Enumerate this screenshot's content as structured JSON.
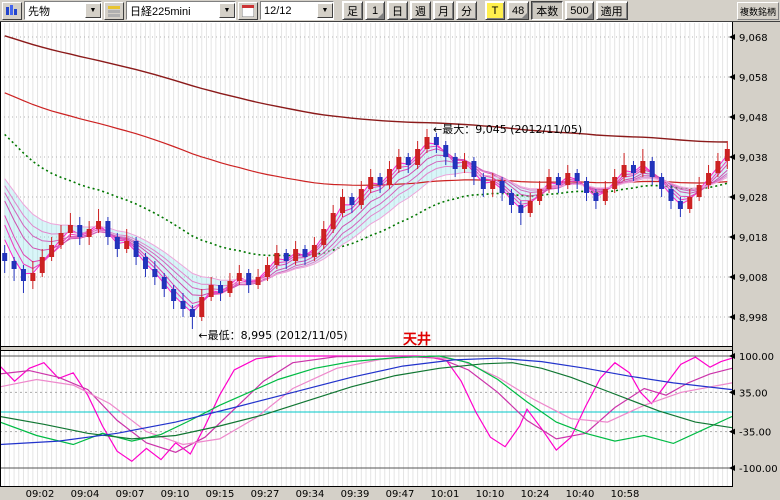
{
  "window": {
    "multi_symbol": "複数銘柄"
  },
  "toolbar": {
    "category_value": "先物",
    "symbol_value": "日経225mini",
    "contract_value": "12/12",
    "btn_bar_type": "足",
    "btn_interval_1": "1",
    "btn_day": "日",
    "btn_week": "週",
    "btn_month": "月",
    "btn_minute": "分",
    "btn_t": "T",
    "btn_bars_48": "48",
    "btn_honsu": "本数",
    "btn_bars_500": "500",
    "btn_apply": "適用"
  },
  "chart_data": {
    "type": "candlestick",
    "title": "日経225mini 12/12",
    "colors": {
      "up": "#cc2222",
      "down": "#2233bb",
      "grid": "#e4e4e4",
      "band": "rgba(130,225,235,0.30)",
      "signal": "#e00000"
    },
    "price_axis": {
      "labels": [
        "9,068",
        "9,058",
        "9,048",
        "9,038",
        "9,028",
        "9,018",
        "9,008",
        "8,998"
      ],
      "values": [
        9068,
        9058,
        9048,
        9038,
        9028,
        9018,
        9008,
        8998
      ]
    },
    "osc_axis": {
      "labels": [
        "100.00",
        "35.00",
        "-35.00",
        "-100.00"
      ],
      "values": [
        100,
        35,
        -35,
        -100
      ]
    },
    "x_ticks": [
      "09:02",
      "09:04",
      "09:07",
      "09:10",
      "09:15",
      "09:27",
      "09:34",
      "09:39",
      "09:47",
      "10:01",
      "10:10",
      "10:24",
      "10:40",
      "10:58"
    ],
    "annotations": {
      "max": "←最大：9,045 (2012/11/05)",
      "min": "←最低：8,995 (2012/11/05)",
      "signal": "天井",
      "signal_xfrac": 0.57
    },
    "candles": [
      [
        9014,
        9016,
        9009,
        9012
      ],
      [
        9012,
        9013,
        9007,
        9010
      ],
      [
        9010,
        9011,
        9004,
        9007
      ],
      [
        9007,
        9012,
        9005,
        9009
      ],
      [
        9009,
        9015,
        9008,
        9013
      ],
      [
        9013,
        9018,
        9012,
        9016
      ],
      [
        9016,
        9021,
        9015,
        9019
      ],
      [
        9019,
        9024,
        9018,
        9021
      ],
      [
        9021,
        9023,
        9016,
        9018
      ],
      [
        9018,
        9022,
        9016,
        9020
      ],
      [
        9020,
        9025,
        9019,
        9022
      ],
      [
        9022,
        9023,
        9016,
        9018
      ],
      [
        9018,
        9019,
        9013,
        9015
      ],
      [
        9015,
        9020,
        9014,
        9017
      ],
      [
        9017,
        9018,
        9011,
        9013
      ],
      [
        9013,
        9014,
        9008,
        9010
      ],
      [
        9010,
        9012,
        9006,
        9008
      ],
      [
        9008,
        9009,
        9003,
        9005
      ],
      [
        9005,
        9006,
        9000,
        9002
      ],
      [
        9002,
        9004,
        8998,
        9000
      ],
      [
        9000,
        9001,
        8995,
        8998
      ],
      [
        8998,
        9005,
        8997,
        9003
      ],
      [
        9003,
        9008,
        9002,
        9006
      ],
      [
        9006,
        9007,
        9002,
        9004
      ],
      [
        9004,
        9009,
        9003,
        9007
      ],
      [
        9007,
        9011,
        9006,
        9009
      ],
      [
        9009,
        9010,
        9004,
        9006
      ],
      [
        9006,
        9010,
        9005,
        9008
      ],
      [
        9008,
        9013,
        9007,
        9011
      ],
      [
        9011,
        9016,
        9010,
        9014
      ],
      [
        9014,
        9015,
        9010,
        9012
      ],
      [
        9012,
        9017,
        9011,
        9015
      ],
      [
        9015,
        9016,
        9011,
        9013
      ],
      [
        9013,
        9018,
        9012,
        9016
      ],
      [
        9016,
        9022,
        9015,
        9020
      ],
      [
        9020,
        9026,
        9019,
        9024
      ],
      [
        9024,
        9030,
        9023,
        9028
      ],
      [
        9028,
        9029,
        9024,
        9026
      ],
      [
        9026,
        9032,
        9025,
        9030
      ],
      [
        9030,
        9035,
        9029,
        9033
      ],
      [
        9033,
        9034,
        9029,
        9031
      ],
      [
        9031,
        9037,
        9030,
        9035
      ],
      [
        9035,
        9040,
        9034,
        9038
      ],
      [
        9038,
        9039,
        9034,
        9036
      ],
      [
        9036,
        9042,
        9035,
        9040
      ],
      [
        9040,
        9045,
        9039,
        9043
      ],
      [
        9043,
        9044,
        9039,
        9041
      ],
      [
        9041,
        9042,
        9036,
        9038
      ],
      [
        9038,
        9039,
        9033,
        9035
      ],
      [
        9035,
        9039,
        9034,
        9037
      ],
      [
        9037,
        9038,
        9031,
        9033
      ],
      [
        9033,
        9034,
        9028,
        9030
      ],
      [
        9030,
        9034,
        9028,
        9032
      ],
      [
        9032,
        9033,
        9027,
        9029
      ],
      [
        9029,
        9030,
        9024,
        9026
      ],
      [
        9026,
        9027,
        9021,
        9024
      ],
      [
        9024,
        9029,
        9023,
        9027
      ],
      [
        9027,
        9032,
        9026,
        9030
      ],
      [
        9030,
        9035,
        9029,
        9033
      ],
      [
        9033,
        9034,
        9029,
        9031
      ],
      [
        9031,
        9036,
        9030,
        9034
      ],
      [
        9034,
        9035,
        9030,
        9032
      ],
      [
        9032,
        9033,
        9027,
        9029
      ],
      [
        9029,
        9030,
        9025,
        9027
      ],
      [
        9027,
        9032,
        9026,
        9030
      ],
      [
        9030,
        9035,
        9029,
        9033
      ],
      [
        9033,
        9039,
        9032,
        9036
      ],
      [
        9036,
        9037,
        9032,
        9034
      ],
      [
        9034,
        9040,
        9033,
        9037
      ],
      [
        9037,
        9038,
        9031,
        9033
      ],
      [
        9033,
        9034,
        9028,
        9030
      ],
      [
        9030,
        9031,
        9025,
        9027
      ],
      [
        9027,
        9028,
        9023,
        9025
      ],
      [
        9025,
        9030,
        9024,
        9028
      ],
      [
        9028,
        9033,
        9027,
        9031
      ],
      [
        9031,
        9036,
        9030,
        9034
      ],
      [
        9034,
        9039,
        9033,
        9037
      ],
      [
        9037,
        9042,
        9035,
        9040
      ]
    ],
    "overlays": {
      "ribbon": {
        "periods": [
          2,
          3,
          4,
          6,
          8,
          10,
          13
        ],
        "seeds": [
          9028,
          9030,
          9031,
          9033,
          9034,
          9035,
          9036
        ],
        "colors": [
          "#ff22cc",
          "#f03cc0",
          "#e046b4",
          "#d050b0",
          "#d464bc",
          "#e284cc",
          "#eea4da"
        ]
      },
      "green": {
        "period": 28,
        "seed": 9046,
        "color": "#007700",
        "width": 1.6,
        "dash": "2,3"
      },
      "red_mid": {
        "period": 90,
        "seed": 9055,
        "color": "#cc2222",
        "width": 1.2
      },
      "red_long": {
        "period": 160,
        "seed": 9069,
        "color": "#8b1a1a",
        "width": 1.4
      }
    },
    "oscillator": {
      "series": [
        {
          "name": "rci-short",
          "color": "#ff00cc",
          "points": [
            [
              0,
              82
            ],
            [
              0.02,
              55
            ],
            [
              0.04,
              78
            ],
            [
              0.06,
              88
            ],
            [
              0.08,
              60
            ],
            [
              0.1,
              70
            ],
            [
              0.12,
              30
            ],
            [
              0.14,
              -25
            ],
            [
              0.16,
              -70
            ],
            [
              0.18,
              -88
            ],
            [
              0.2,
              -65
            ],
            [
              0.22,
              -85
            ],
            [
              0.24,
              -55
            ],
            [
              0.26,
              -75
            ],
            [
              0.28,
              -25
            ],
            [
              0.3,
              30
            ],
            [
              0.32,
              75
            ],
            [
              0.35,
              95
            ],
            [
              0.38,
              100
            ],
            [
              0.45,
              100
            ],
            [
              0.52,
              100
            ],
            [
              0.58,
              100
            ],
            [
              0.61,
              92
            ],
            [
              0.63,
              55
            ],
            [
              0.65,
              0
            ],
            [
              0.67,
              -45
            ],
            [
              0.69,
              -62
            ],
            [
              0.71,
              -25
            ],
            [
              0.72,
              5
            ],
            [
              0.74,
              -30
            ],
            [
              0.76,
              -68
            ],
            [
              0.78,
              -45
            ],
            [
              0.8,
              10
            ],
            [
              0.82,
              60
            ],
            [
              0.84,
              88
            ],
            [
              0.86,
              70
            ],
            [
              0.875,
              35
            ],
            [
              0.89,
              15
            ],
            [
              0.91,
              50
            ],
            [
              0.93,
              85
            ],
            [
              0.95,
              98
            ],
            [
              0.97,
              80
            ],
            [
              0.985,
              90
            ],
            [
              1,
              96
            ]
          ]
        },
        {
          "name": "rci-mid",
          "color": "#cc33aa",
          "points": [
            [
              0,
              68
            ],
            [
              0.04,
              74
            ],
            [
              0.08,
              62
            ],
            [
              0.12,
              40
            ],
            [
              0.16,
              -15
            ],
            [
              0.2,
              -55
            ],
            [
              0.24,
              -72
            ],
            [
              0.28,
              -45
            ],
            [
              0.32,
              5
            ],
            [
              0.36,
              55
            ],
            [
              0.4,
              88
            ],
            [
              0.46,
              99
            ],
            [
              0.54,
              100
            ],
            [
              0.6,
              96
            ],
            [
              0.64,
              75
            ],
            [
              0.68,
              35
            ],
            [
              0.72,
              -15
            ],
            [
              0.76,
              -48
            ],
            [
              0.8,
              -38
            ],
            [
              0.84,
              8
            ],
            [
              0.88,
              42
            ],
            [
              0.91,
              30
            ],
            [
              0.94,
              52
            ],
            [
              0.97,
              68
            ],
            [
              1,
              78
            ]
          ]
        },
        {
          "name": "rci-mid2",
          "color": "#ee88cc",
          "points": [
            [
              0,
              45
            ],
            [
              0.05,
              58
            ],
            [
              0.1,
              48
            ],
            [
              0.15,
              15
            ],
            [
              0.2,
              -35
            ],
            [
              0.25,
              -58
            ],
            [
              0.3,
              -48
            ],
            [
              0.35,
              -10
            ],
            [
              0.4,
              42
            ],
            [
              0.46,
              78
            ],
            [
              0.52,
              94
            ],
            [
              0.58,
              100
            ],
            [
              0.63,
              92
            ],
            [
              0.68,
              62
            ],
            [
              0.73,
              22
            ],
            [
              0.78,
              -12
            ],
            [
              0.83,
              -18
            ],
            [
              0.88,
              12
            ],
            [
              0.93,
              35
            ],
            [
              1,
              52
            ]
          ]
        },
        {
          "name": "rci-long-fast",
          "color": "#00bb44",
          "points": [
            [
              0,
              -18
            ],
            [
              0.05,
              -42
            ],
            [
              0.1,
              -58
            ],
            [
              0.14,
              -38
            ],
            [
              0.18,
              -52
            ],
            [
              0.22,
              -40
            ],
            [
              0.26,
              -15
            ],
            [
              0.3,
              12
            ],
            [
              0.34,
              35
            ],
            [
              0.38,
              58
            ],
            [
              0.43,
              78
            ],
            [
              0.48,
              90
            ],
            [
              0.54,
              97
            ],
            [
              0.6,
              100
            ],
            [
              0.64,
              88
            ],
            [
              0.68,
              58
            ],
            [
              0.72,
              18
            ],
            [
              0.76,
              -18
            ],
            [
              0.8,
              -38
            ],
            [
              0.84,
              -52
            ],
            [
              0.88,
              -42
            ],
            [
              0.92,
              -56
            ],
            [
              0.96,
              -32
            ],
            [
              1,
              -8
            ]
          ]
        },
        {
          "name": "rci-long-slow",
          "color": "#117733",
          "points": [
            [
              0,
              -8
            ],
            [
              0.06,
              -22
            ],
            [
              0.12,
              -38
            ],
            [
              0.18,
              -48
            ],
            [
              0.24,
              -42
            ],
            [
              0.3,
              -25
            ],
            [
              0.36,
              -5
            ],
            [
              0.42,
              20
            ],
            [
              0.48,
              45
            ],
            [
              0.54,
              65
            ],
            [
              0.6,
              78
            ],
            [
              0.66,
              86
            ],
            [
              0.7,
              88
            ],
            [
              0.74,
              78
            ],
            [
              0.78,
              62
            ],
            [
              0.82,
              42
            ],
            [
              0.86,
              22
            ],
            [
              0.9,
              2
            ],
            [
              0.95,
              -18
            ],
            [
              1,
              -28
            ]
          ]
        },
        {
          "name": "rci-longest",
          "color": "#2233cc",
          "points": [
            [
              0,
              -58
            ],
            [
              0.08,
              -52
            ],
            [
              0.16,
              -38
            ],
            [
              0.24,
              -18
            ],
            [
              0.32,
              8
            ],
            [
              0.4,
              35
            ],
            [
              0.48,
              62
            ],
            [
              0.55,
              82
            ],
            [
              0.62,
              93
            ],
            [
              0.68,
              96
            ],
            [
              0.74,
              90
            ],
            [
              0.8,
              78
            ],
            [
              0.86,
              64
            ],
            [
              0.92,
              52
            ],
            [
              1,
              40
            ]
          ]
        }
      ]
    }
  }
}
